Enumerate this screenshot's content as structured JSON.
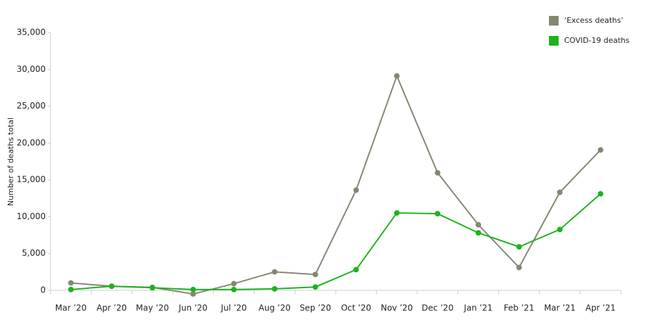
{
  "chart_data": {
    "type": "line",
    "y_label": "Number of deaths total",
    "categories": [
      "Mar ’20",
      "Apr ’20",
      "May ’20",
      "Jun ’20",
      "Jul ’20",
      "Aug ’20",
      "Sep ’20",
      "Oct ’20",
      "Nov ’20",
      "Dec ’20",
      "Jan ’21",
      "Feb ’21",
      "Mar ’21",
      "Apr ’21"
    ],
    "series": [
      {
        "name": "‘Excess deaths’",
        "color": "#868673",
        "values": [
          1000,
          550,
          400,
          -500,
          900,
          2500,
          2150,
          13600,
          29100,
          15950,
          8900,
          3100,
          13300,
          19050
        ]
      },
      {
        "name": "COVID-19 deaths",
        "color": "#1db31c",
        "values": [
          100,
          550,
          350,
          100,
          100,
          200,
          450,
          2800,
          10500,
          10400,
          7800,
          5900,
          8250,
          13100
        ]
      }
    ],
    "ylim": [
      0,
      35000
    ],
    "yticks": [
      0,
      {
        "value": 5000,
        "label": "5,000"
      },
      {
        "value": 10000,
        "label": "10,000"
      },
      {
        "value": 15000,
        "label": "15,000"
      },
      {
        "value": 20000,
        "label": "20,000"
      },
      {
        "value": 25000,
        "label": "25,000"
      },
      {
        "value": 30000,
        "label": "30,000"
      },
      {
        "value": 35000,
        "label": "35,000"
      }
    ],
    "legend": "top-right"
  }
}
